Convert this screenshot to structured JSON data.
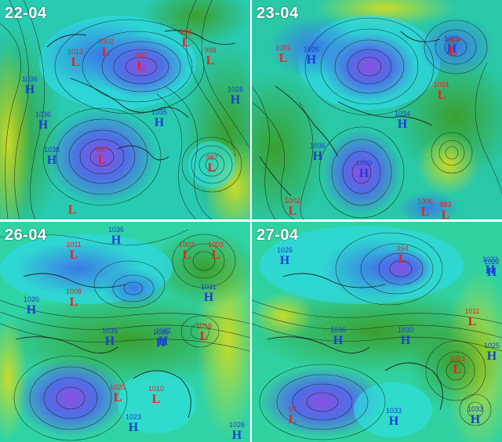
{
  "panels": [
    {
      "title": "22-04",
      "markers": [
        {
          "kind": "low",
          "label": "L",
          "value": "1002"
        },
        {
          "kind": "low",
          "label": "L",
          "value": "1012"
        },
        {
          "kind": "low",
          "label": "L",
          "value": "997"
        },
        {
          "kind": "low",
          "label": "L",
          "value": "998"
        },
        {
          "kind": "low",
          "label": "L",
          "value": "998"
        },
        {
          "kind": "high",
          "label": "H",
          "value": "1036"
        },
        {
          "kind": "high",
          "label": "H",
          "value": "1036"
        },
        {
          "kind": "high",
          "label": "H",
          "value": "1038"
        },
        {
          "kind": "high",
          "label": "H",
          "value": "1028"
        },
        {
          "kind": "high",
          "label": "H",
          "value": "1035"
        },
        {
          "kind": "low",
          "label": "L",
          "value": "987"
        },
        {
          "kind": "low",
          "label": "L",
          "value": "987"
        },
        {
          "kind": "low",
          "label": "L",
          "value": ""
        }
      ]
    },
    {
      "title": "23-04",
      "markers": [
        {
          "kind": "low",
          "label": "L",
          "value": "1001"
        },
        {
          "kind": "high",
          "label": "H",
          "value": "1026"
        },
        {
          "kind": "high",
          "label": "H",
          "value": "1026"
        },
        {
          "kind": "low",
          "label": "L",
          "value": "1004"
        },
        {
          "kind": "low",
          "label": "L",
          "value": "993"
        },
        {
          "kind": "low",
          "label": "L",
          "value": "1001"
        },
        {
          "kind": "high",
          "label": "H",
          "value": "1034"
        },
        {
          "kind": "high",
          "label": "H",
          "value": "1036"
        },
        {
          "kind": "high",
          "label": "H",
          "value": "1030"
        },
        {
          "kind": "low",
          "label": "L",
          "value": "1002"
        },
        {
          "kind": "low",
          "label": "L",
          "value": "1006"
        },
        {
          "kind": "low",
          "label": "L",
          "value": "983"
        }
      ]
    },
    {
      "title": "26-04",
      "markers": [
        {
          "kind": "high",
          "label": "H",
          "value": "1036"
        },
        {
          "kind": "low",
          "label": "L",
          "value": "1011"
        },
        {
          "kind": "low",
          "label": "L",
          "value": "1003"
        },
        {
          "kind": "low",
          "label": "L",
          "value": "1003"
        },
        {
          "kind": "low",
          "label": "L",
          "value": "1008"
        },
        {
          "kind": "high",
          "label": "H",
          "value": "1020"
        },
        {
          "kind": "high",
          "label": "H",
          "value": "1031"
        },
        {
          "kind": "high",
          "label": "H",
          "value": "1035"
        },
        {
          "kind": "high",
          "label": "H",
          "value": "1032"
        },
        {
          "kind": "low",
          "label": "L",
          "value": "1019"
        },
        {
          "kind": "high",
          "label": "H",
          "value": "1035"
        },
        {
          "kind": "low",
          "label": "L",
          "value": "1020"
        },
        {
          "kind": "low",
          "label": "L",
          "value": "1010"
        },
        {
          "kind": "high",
          "label": "H",
          "value": "1023"
        },
        {
          "kind": "high",
          "label": "H",
          "value": "1026"
        }
      ]
    },
    {
      "title": "27-04",
      "markers": [
        {
          "kind": "high",
          "label": "H",
          "value": "1026"
        },
        {
          "kind": "low",
          "label": "L",
          "value": "994"
        },
        {
          "kind": "high",
          "label": "H",
          "value": "1022"
        },
        {
          "kind": "high",
          "label": "H",
          "value": "1022"
        },
        {
          "kind": "low",
          "label": "L",
          "value": "1011"
        },
        {
          "kind": "high",
          "label": "H",
          "value": "1036"
        },
        {
          "kind": "high",
          "label": "H",
          "value": "1030"
        },
        {
          "kind": "high",
          "label": "H",
          "value": "1025"
        },
        {
          "kind": "low",
          "label": "L",
          "value": "1013"
        },
        {
          "kind": "low",
          "label": "L",
          "value": "97"
        },
        {
          "kind": "high",
          "label": "H",
          "value": "1033"
        },
        {
          "kind": "high",
          "label": "H",
          "value": "1033"
        }
      ]
    }
  ],
  "colors": {
    "low_marker": "#e8231f",
    "high_marker": "#1a3fd6",
    "deep_low": "#7a52d8",
    "low_blue": "#3d76e4",
    "mid_cyan": "#2fe2e8",
    "mid_teal": "#20c9a6",
    "green": "#3fa833",
    "yellow": "#c6d92a",
    "title_text": "#ffffff",
    "contour": "#111111"
  }
}
